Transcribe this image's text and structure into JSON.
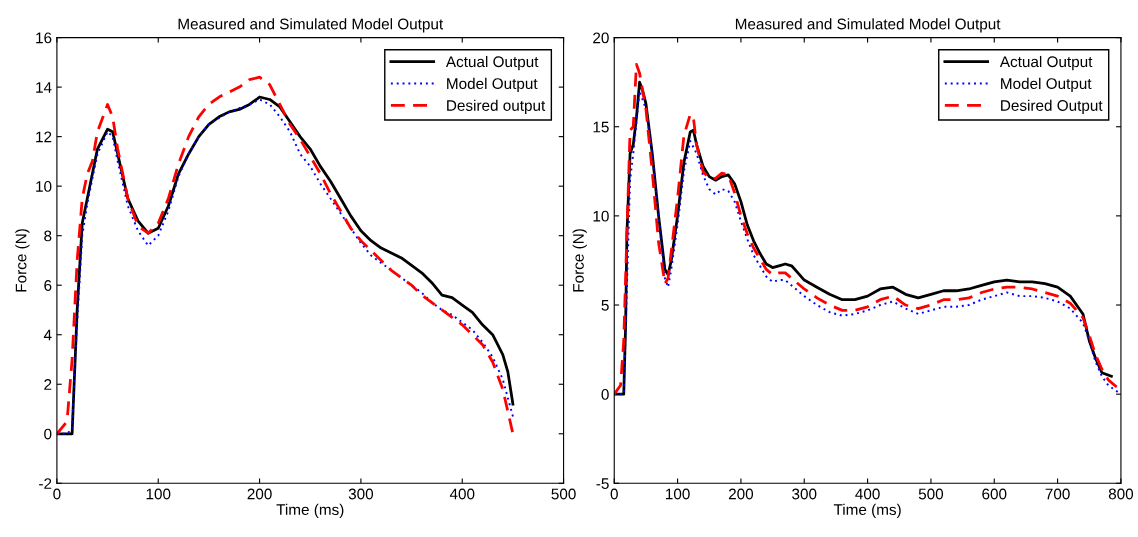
{
  "chart_data": [
    {
      "type": "line",
      "title": "Measured and Simulated Model Output",
      "xlabel": "Time (ms)",
      "ylabel": "Force (N)",
      "xlim": [
        0,
        500
      ],
      "ylim": [
        -2,
        16
      ],
      "xticks": [
        0,
        100,
        200,
        300,
        400,
        500
      ],
      "yticks": [
        -2,
        0,
        2,
        4,
        6,
        8,
        10,
        12,
        14,
        16
      ],
      "legend": "top right",
      "grid": false,
      "series": [
        {
          "name": "Actual Output",
          "color": "#000000",
          "line_style": "solid",
          "x": [
            0,
            10,
            15,
            17,
            20,
            25,
            30,
            35,
            40,
            50,
            55,
            60,
            70,
            80,
            90,
            100,
            110,
            120,
            130,
            140,
            150,
            160,
            170,
            180,
            190,
            200,
            210,
            220,
            230,
            240,
            250,
            260,
            270,
            280,
            290,
            300,
            310,
            320,
            330,
            340,
            350,
            360,
            370,
            380,
            390,
            400,
            410,
            420,
            430,
            440,
            445,
            450
          ],
          "values": [
            0,
            0,
            0,
            2,
            5,
            8.5,
            9.5,
            10.5,
            11.5,
            12.3,
            12.2,
            11.3,
            9.5,
            8.6,
            8.1,
            8.3,
            9.2,
            10.5,
            11.3,
            12.0,
            12.5,
            12.8,
            13.0,
            13.1,
            13.3,
            13.6,
            13.5,
            13.2,
            12.6,
            12.0,
            11.5,
            10.8,
            10.2,
            9.5,
            8.8,
            8.2,
            7.8,
            7.5,
            7.3,
            7.1,
            6.8,
            6.5,
            6.1,
            5.6,
            5.5,
            5.2,
            4.9,
            4.4,
            4.0,
            3.2,
            2.5,
            1.2
          ]
        },
        {
          "name": "Model Output",
          "color": "#0000ff",
          "line_style": "dotted",
          "x": [
            0,
            10,
            15,
            18,
            20,
            25,
            30,
            40,
            50,
            55,
            60,
            70,
            80,
            90,
            100,
            110,
            120,
            130,
            140,
            150,
            170,
            190,
            200,
            210,
            220,
            230,
            240,
            250,
            260,
            270,
            280,
            290,
            300,
            310,
            320,
            330,
            340,
            350,
            360,
            370,
            380,
            390,
            400,
            410,
            420,
            430,
            440,
            450
          ],
          "values": [
            0,
            0,
            0.2,
            3,
            4.5,
            8,
            9.3,
            11.3,
            12.2,
            12,
            11,
            9.2,
            8.2,
            7.6,
            8.0,
            9.0,
            10.4,
            11.3,
            12.0,
            12.5,
            13.0,
            13.3,
            13.5,
            13.3,
            12.8,
            12.2,
            11.3,
            10.8,
            10.1,
            9.5,
            8.9,
            8.3,
            7.7,
            7.2,
            6.9,
            6.6,
            6.3,
            6.0,
            5.7,
            5.3,
            5.0,
            4.8,
            4.5,
            4.2,
            3.7,
            3.1,
            2.2,
            0.7
          ]
        },
        {
          "name": "Desired output",
          "color": "#ff0000",
          "line_style": "dashed",
          "x": [
            0,
            10,
            15,
            20,
            25,
            30,
            35,
            40,
            50,
            55,
            60,
            70,
            80,
            90,
            100,
            110,
            120,
            130,
            140,
            150,
            160,
            170,
            180,
            190,
            200,
            210,
            220,
            230,
            240,
            250,
            260,
            270,
            280,
            290,
            300,
            310,
            320,
            330,
            340,
            350,
            360,
            370,
            380,
            390,
            400,
            410,
            420,
            430,
            440,
            450
          ],
          "values": [
            0,
            0.5,
            3,
            7,
            9.5,
            10.5,
            11,
            12.2,
            13.3,
            12.8,
            11.5,
            9.5,
            8.4,
            8.1,
            8.5,
            9.5,
            10.9,
            12.0,
            12.8,
            13.3,
            13.6,
            13.8,
            14.0,
            14.3,
            14.4,
            14.1,
            13.3,
            12.5,
            11.9,
            11.2,
            10.5,
            9.7,
            9.0,
            8.3,
            7.8,
            7.4,
            7.0,
            6.6,
            6.3,
            6.0,
            5.6,
            5.3,
            5.0,
            4.7,
            4.4,
            4.0,
            3.6,
            2.9,
            1.8,
            0
          ]
        }
      ]
    },
    {
      "type": "line",
      "title": "Measured and Simulated Model Output",
      "xlabel": "Time (ms)",
      "ylabel": "Force (N)",
      "xlim": [
        0,
        800
      ],
      "ylim": [
        -5,
        20
      ],
      "xticks": [
        0,
        100,
        200,
        300,
        400,
        500,
        600,
        700,
        800
      ],
      "yticks": [
        -5,
        0,
        5,
        10,
        15,
        20
      ],
      "legend": "top right",
      "grid": false,
      "series": [
        {
          "name": "Actual Output",
          "color": "#000000",
          "line_style": "solid",
          "x": [
            0,
            10,
            15,
            18,
            20,
            25,
            30,
            35,
            40,
            45,
            50,
            60,
            70,
            80,
            85,
            90,
            100,
            110,
            120,
            125,
            130,
            140,
            150,
            160,
            170,
            180,
            190,
            200,
            210,
            220,
            230,
            240,
            250,
            260,
            270,
            280,
            290,
            300,
            320,
            340,
            360,
            380,
            400,
            420,
            440,
            460,
            480,
            500,
            520,
            540,
            560,
            580,
            600,
            620,
            640,
            660,
            680,
            700,
            720,
            740,
            750,
            760,
            770,
            785
          ],
          "values": [
            0,
            0,
            0,
            4,
            9,
            13.5,
            14,
            15.5,
            17.5,
            17,
            16.3,
            13.5,
            10,
            7,
            6.7,
            7.5,
            10,
            13,
            14.7,
            14.8,
            14,
            12.8,
            12.2,
            12,
            12.2,
            12.3,
            11.8,
            10.8,
            9.5,
            8.6,
            7.9,
            7.3,
            7.1,
            7.2,
            7.3,
            7.2,
            6.8,
            6.4,
            6.0,
            5.6,
            5.3,
            5.3,
            5.5,
            5.9,
            6.0,
            5.6,
            5.4,
            5.6,
            5.8,
            5.8,
            5.9,
            6.1,
            6.3,
            6.4,
            6.3,
            6.3,
            6.2,
            6.0,
            5.5,
            4.5,
            3,
            2,
            1.2,
            1
          ]
        },
        {
          "name": "Model Output",
          "color": "#0000ff",
          "line_style": "dotted",
          "x": [
            0,
            15,
            20,
            25,
            30,
            40,
            50,
            60,
            70,
            80,
            85,
            90,
            100,
            110,
            120,
            130,
            140,
            150,
            160,
            170,
            180,
            190,
            200,
            210,
            220,
            230,
            240,
            250,
            260,
            270,
            280,
            300,
            320,
            340,
            360,
            380,
            400,
            420,
            440,
            460,
            480,
            500,
            520,
            540,
            560,
            580,
            600,
            620,
            640,
            660,
            680,
            700,
            720,
            740,
            750,
            760,
            770,
            780,
            800
          ],
          "values": [
            0,
            0,
            6,
            12,
            13.5,
            17,
            16,
            13.5,
            10,
            6.5,
            6,
            7,
            9.5,
            12.5,
            14.2,
            13.5,
            12.3,
            11.5,
            11.2,
            11.5,
            11.4,
            10.8,
            9.7,
            8.7,
            7.8,
            7.2,
            6.6,
            6.3,
            6.4,
            6.4,
            6.1,
            5.5,
            5.0,
            4.6,
            4.4,
            4.5,
            4.7,
            5.0,
            5.2,
            4.8,
            4.5,
            4.7,
            4.9,
            4.9,
            5.0,
            5.3,
            5.5,
            5.7,
            5.5,
            5.5,
            5.4,
            5.2,
            4.8,
            4.0,
            3.0,
            1.8,
            1.0,
            0.5,
            0
          ]
        },
        {
          "name": "Desired Output",
          "color": "#ff0000",
          "line_style": "dashed",
          "x": [
            0,
            10,
            15,
            20,
            25,
            30,
            35,
            40,
            50,
            60,
            70,
            80,
            85,
            90,
            100,
            110,
            120,
            125,
            130,
            140,
            150,
            160,
            170,
            180,
            190,
            200,
            210,
            220,
            230,
            240,
            250,
            260,
            270,
            280,
            300,
            320,
            340,
            360,
            380,
            400,
            420,
            440,
            460,
            480,
            500,
            520,
            540,
            560,
            580,
            600,
            620,
            640,
            660,
            680,
            700,
            720,
            740,
            750,
            760,
            770,
            780,
            800
          ],
          "values": [
            0,
            0.5,
            3,
            9,
            14.8,
            15,
            18.5,
            18,
            16,
            12.5,
            8.5,
            6.2,
            6.5,
            8,
            11,
            14.5,
            15.7,
            15.5,
            14,
            12.5,
            12.1,
            12.1,
            12.4,
            12.3,
            11.3,
            10,
            9,
            8.2,
            7.6,
            7.0,
            6.7,
            6.8,
            6.8,
            6.5,
            5.9,
            5.4,
            5.0,
            4.7,
            4.7,
            4.9,
            5.3,
            5.5,
            5.0,
            4.8,
            5.0,
            5.3,
            5.3,
            5.4,
            5.7,
            5.9,
            6.0,
            6.0,
            5.9,
            5.7,
            5.5,
            5.1,
            4.3,
            3.3,
            2.2,
            1.4,
            0.8,
            0.2
          ]
        }
      ]
    }
  ]
}
